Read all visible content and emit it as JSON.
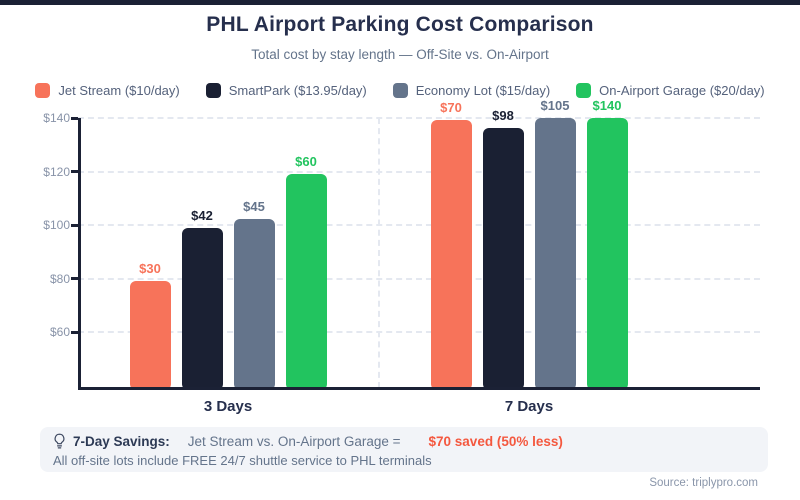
{
  "header": {
    "title": "PHL Airport Parking Cost Comparison",
    "subtitle": "Total cost by stay length — Off-Site vs. On-Airport"
  },
  "colors": {
    "accent_bar": "#1B2135",
    "jet_stream": "#F7735A",
    "smartpark": "#1A2033",
    "economy_lot": "#64748B",
    "garage": "#22C45F",
    "grid": "#E4E8F0",
    "savings_value": "#F4583F"
  },
  "chart_data": {
    "type": "bar",
    "title": "PHL Airport Parking Cost Comparison",
    "subtitle": "Total cost by stay length — Off-Site vs. On-Airport",
    "categories": [
      "3 Days",
      "7 Days"
    ],
    "series": [
      {
        "name": "Jet Stream ($10/day)",
        "color": "#F7735A",
        "values": [
          30,
          70
        ],
        "data_labels": [
          "$30",
          "$70"
        ],
        "rendered_tops": [
          79.3,
          139.2
        ]
      },
      {
        "name": "SmartPark ($13.95/day)",
        "color": "#1A2033",
        "values": [
          42,
          98
        ],
        "data_labels": [
          "$42",
          "$98"
        ],
        "rendered_tops": [
          98.8,
          136.3
        ]
      },
      {
        "name": "Economy Lot ($15/day)",
        "color": "#64748B",
        "values": [
          45,
          105
        ],
        "data_labels": [
          "$45",
          "$105"
        ],
        "rendered_tops": [
          102.2,
          140
        ]
      },
      {
        "name": "On-Airport Garage ($20/day)",
        "color": "#22C45F",
        "values": [
          60,
          140
        ],
        "data_labels": [
          "$60",
          "$140"
        ],
        "rendered_tops": [
          119,
          140
        ]
      }
    ],
    "y_axis": {
      "tick_values": [
        140,
        120,
        100,
        80,
        60
      ],
      "tick_labels": [
        "$140",
        "$120",
        "$100",
        "$80",
        "$60"
      ],
      "rendered_min": 38.5,
      "rendered_max": 140
    },
    "grid": "dashed-horizontal",
    "group_separator": true,
    "legend_position": "top"
  },
  "footnote": {
    "savings_label": "7-Day Savings:",
    "savings_comparison": "Jet Stream vs. On-Airport Garage =",
    "savings_value": "$70 saved (50% less)",
    "shuttle_note": "All off-site lots include FREE 24/7 shuttle service to PHL terminals"
  },
  "source": "Source: triplypro.com"
}
